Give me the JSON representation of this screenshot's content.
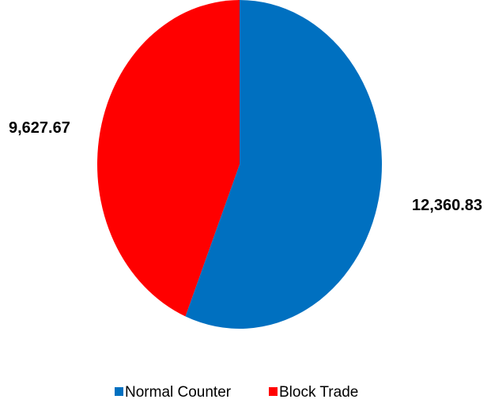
{
  "chart_data": {
    "type": "pie",
    "series": [
      {
        "values": [
          12360.83,
          9627.67
        ]
      }
    ],
    "categories": [
      "Normal Counter",
      "Block Trade"
    ],
    "data_labels": [
      "12,360.83",
      "9,627.67"
    ],
    "colors": [
      "#0070C0",
      "#FF0000"
    ],
    "start": "12 o'clock",
    "direction": "clockwise",
    "legend": "bottom"
  }
}
